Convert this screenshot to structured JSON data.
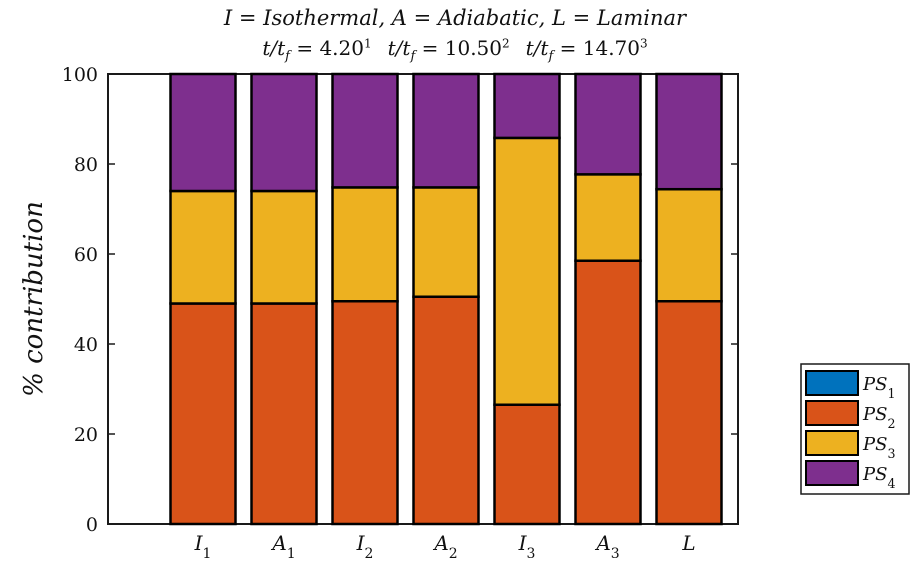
{
  "title": {
    "line1": "I = Isothermal, A = Adiabatic, L = Laminar",
    "line2": [
      {
        "base": "t/t",
        "sub": "f",
        "value": " = 4.20",
        "sup": "1"
      },
      {
        "base": "t/t",
        "sub": "f",
        "value": " = 10.50",
        "sup": "2"
      },
      {
        "base": "t/t",
        "sub": "f",
        "value": " = 14.70",
        "sup": "3"
      }
    ]
  },
  "chart_data": {
    "type": "bar",
    "stacked": true,
    "categories": [
      {
        "base": "I",
        "sub": "1"
      },
      {
        "base": "A",
        "sub": "1"
      },
      {
        "base": "I",
        "sub": "2"
      },
      {
        "base": "A",
        "sub": "2"
      },
      {
        "base": "I",
        "sub": "3"
      },
      {
        "base": "A",
        "sub": "3"
      },
      {
        "base": "L",
        "sub": ""
      }
    ],
    "series": [
      {
        "name": "PS1",
        "label_base": "PS",
        "label_sub": "1",
        "color": "#0072BD",
        "values": [
          0,
          0,
          0,
          0,
          0,
          0,
          0
        ]
      },
      {
        "name": "PS2",
        "label_base": "PS",
        "label_sub": "2",
        "color": "#D95319",
        "values": [
          49,
          49,
          49.5,
          50.5,
          26.5,
          58.5,
          49.5
        ]
      },
      {
        "name": "PS3",
        "label_base": "PS",
        "label_sub": "3",
        "color": "#EDB120",
        "values": [
          25,
          25,
          25.3,
          24.3,
          59.3,
          19.2,
          24.9
        ]
      },
      {
        "name": "PS4",
        "label_base": "PS",
        "label_sub": "4",
        "color": "#7E2F8E",
        "values": [
          26,
          26,
          25.2,
          25.2,
          14.2,
          22.3,
          25.6
        ]
      }
    ],
    "ylabel": "% contribution",
    "ylim": [
      0,
      100
    ],
    "yticks": [
      0,
      20,
      40,
      60,
      80,
      100
    ],
    "grid": false,
    "legend_position": "outside-bottom-right"
  }
}
